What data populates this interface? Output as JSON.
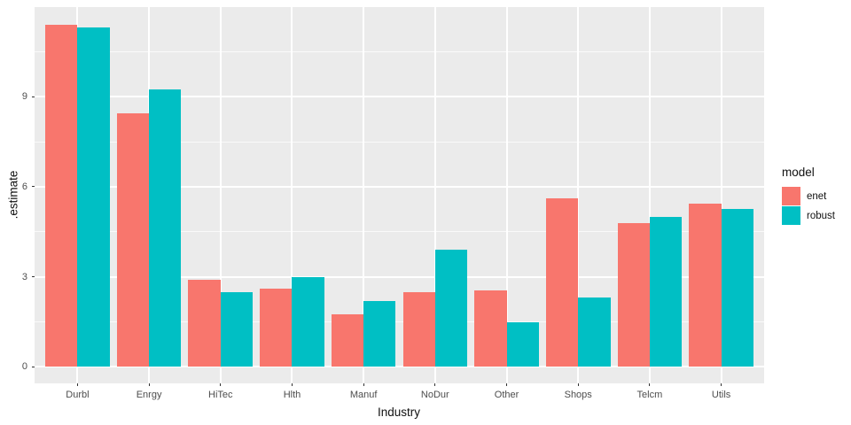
{
  "chart_data": {
    "type": "bar",
    "title": "",
    "xlabel": "Industry",
    "ylabel": ".estimate",
    "categories": [
      "Durbl",
      "Enrgy",
      "HiTec",
      "Hlth",
      "Manuf",
      "NoDur",
      "Other",
      "Shops",
      "Telcm",
      "Utils"
    ],
    "series": [
      {
        "name": "enet",
        "color": "#F8766D",
        "values": [
          11.4,
          8.45,
          2.9,
          2.6,
          1.75,
          2.5,
          2.55,
          5.6,
          4.8,
          5.45
        ]
      },
      {
        "name": "robust",
        "color": "#00BFC4",
        "values": [
          11.3,
          9.25,
          2.5,
          3.0,
          2.2,
          3.9,
          1.5,
          2.3,
          5.0,
          5.25
        ]
      }
    ],
    "y_ticks": [
      0,
      3,
      6,
      9
    ],
    "y_minor_ticks": [
      1.5,
      4.5,
      7.5,
      10.5
    ],
    "ylim": [
      -0.57,
      11.97
    ],
    "grid": true,
    "legend": {
      "title": "model",
      "position": "right",
      "entries": [
        "enet",
        "robust"
      ]
    }
  },
  "style": {
    "panel_bg": "#EBEBEB",
    "grid_color": "#FFFFFF",
    "bar_colors": {
      "enet": "#F8766D",
      "robust": "#00BFC4"
    },
    "axis_text_color": "#4D4D4D",
    "axis_title_color": "#111111",
    "tick_mark_color": "#333333"
  }
}
